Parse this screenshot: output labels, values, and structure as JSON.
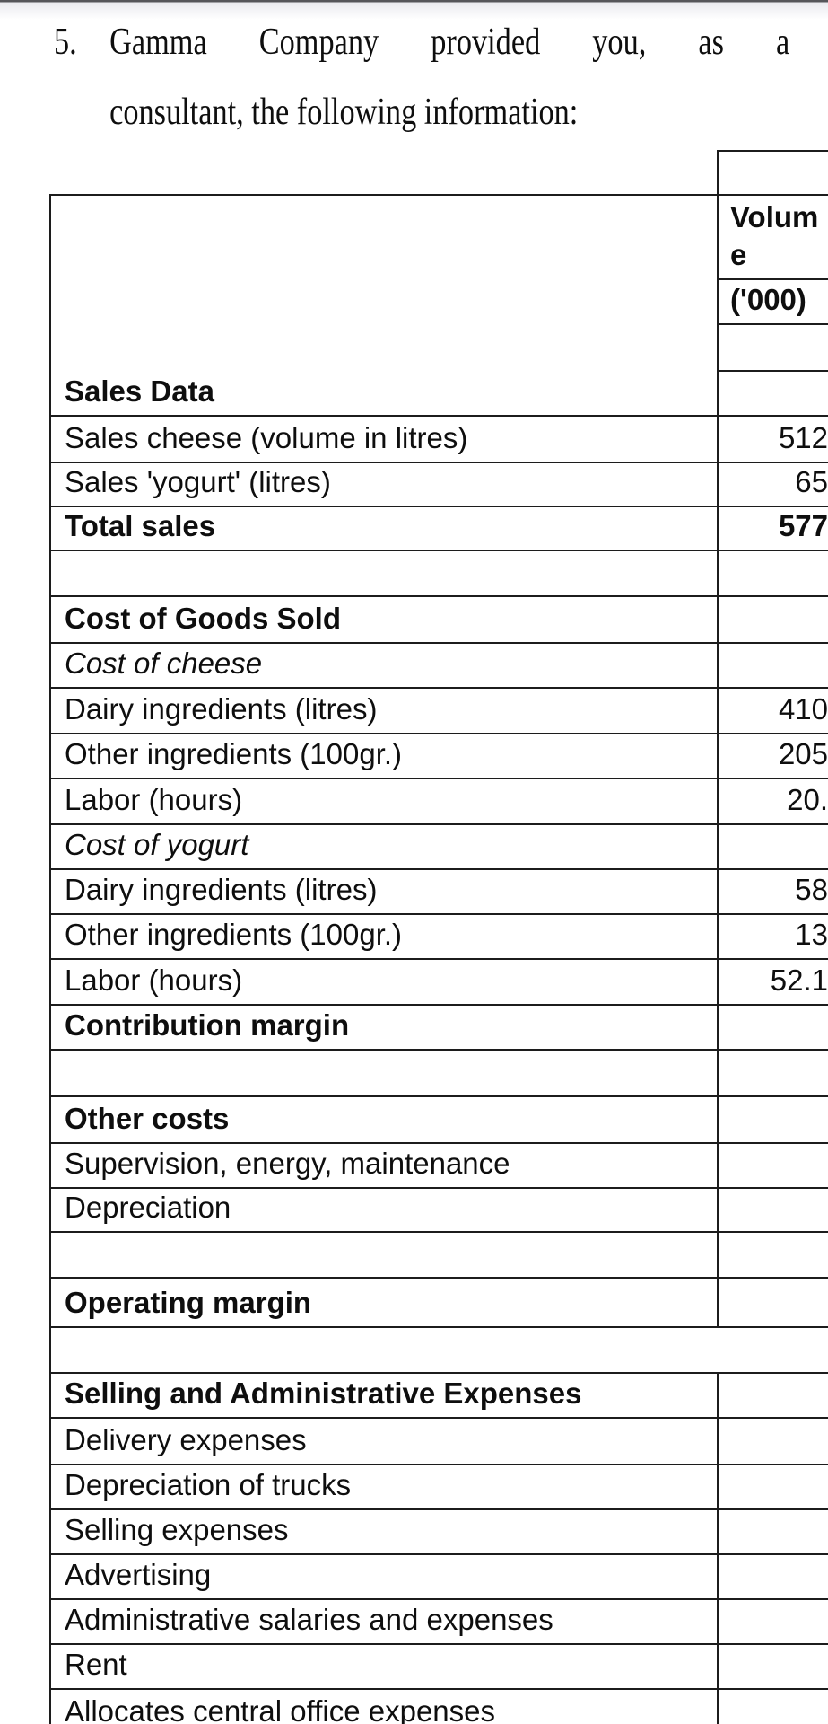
{
  "colors": {
    "text": "#0e0e0e",
    "border": "#1c1c1c",
    "background": "#ffffff",
    "top_edge_shade": "#e9e9ee"
  },
  "problem": {
    "list_number": "5.",
    "intro_line1": "Gamma Company provided you, as a",
    "intro_line2": "consultant, the following information:"
  },
  "table": {
    "section_header": "Sales Data",
    "value_column_header": "Volume",
    "value_column_unit": "('000)",
    "rows": [
      {
        "label": "Sales cheese (volume in litres)",
        "value": "512"
      },
      {
        "label": "Sales 'yogurt' (litres)",
        "value": "65"
      },
      {
        "label": "Total sales",
        "value": "577",
        "bold": true
      },
      {
        "label": "",
        "value": ""
      },
      {
        "label": "Cost of Goods Sold",
        "value": "",
        "bold": true
      },
      {
        "label": "Cost of cheese",
        "value": "",
        "italic": true
      },
      {
        "label": "Dairy ingredients (litres)",
        "value": "410"
      },
      {
        "label": "Other ingredients (100gr.)",
        "value": "205"
      },
      {
        "label": "Labor (hours)",
        "value": "20."
      },
      {
        "label": "Cost of yogurt",
        "value": "",
        "italic": true
      },
      {
        "label": "Dairy ingredients (litres)",
        "value": "58"
      },
      {
        "label": "Other ingredients (100gr.)",
        "value": "13"
      },
      {
        "label": "Labor (hours)",
        "value": "52.1"
      },
      {
        "label": "Contribution margin",
        "value": "",
        "bold": true
      },
      {
        "label": "",
        "value": ""
      },
      {
        "label": "Other costs",
        "value": "",
        "bold": true
      },
      {
        "label": "Supervision, energy, maintenance",
        "value": ""
      },
      {
        "label": "Depreciation",
        "value": ""
      },
      {
        "label": "",
        "value": ""
      },
      {
        "label": "Operating margin",
        "value": "",
        "bold": true
      },
      {
        "label": "",
        "merged": true
      },
      {
        "label": "Selling and Administrative Expenses",
        "value": "",
        "bold": true
      },
      {
        "label": "Delivery expenses",
        "value": ""
      },
      {
        "label": "Depreciation of trucks",
        "value": ""
      },
      {
        "label": "Selling expenses",
        "value": ""
      },
      {
        "label": "Advertising",
        "value": ""
      },
      {
        "label": "Administrative salaries and expenses",
        "value": ""
      },
      {
        "label": "Rent",
        "value": ""
      },
      {
        "label": "Allocates central office expenses",
        "value": ""
      }
    ]
  }
}
